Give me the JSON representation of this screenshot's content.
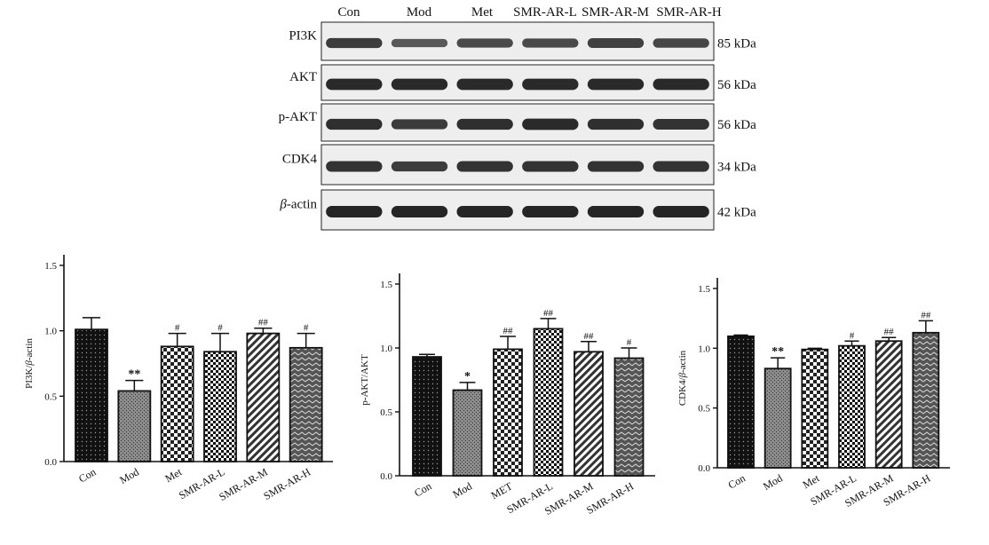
{
  "western_blot": {
    "lanes": [
      "Con",
      "Mod",
      "Met",
      "SMR-AR-L",
      "SMR-AR-M",
      "SMR-AR-H"
    ],
    "rows": [
      {
        "label": "PI3K",
        "kda": "85 kDa",
        "intensity": [
          0.75,
          0.45,
          0.6,
          0.6,
          0.7,
          0.65
        ]
      },
      {
        "label": "AKT",
        "kda": "56 kDa",
        "intensity": [
          0.95,
          0.95,
          0.95,
          0.95,
          0.95,
          0.95
        ]
      },
      {
        "label": "p-AKT",
        "kda": "56 kDa",
        "intensity": [
          0.9,
          0.75,
          0.9,
          0.95,
          0.9,
          0.85
        ]
      },
      {
        "label": "CDK4",
        "kda": "34 kDa",
        "intensity": [
          0.85,
          0.75,
          0.85,
          0.85,
          0.85,
          0.85
        ]
      },
      {
        "label": "β-actin",
        "kda": "42 kDa",
        "intensity": [
          1,
          1,
          1,
          1,
          1,
          1
        ]
      }
    ]
  },
  "chart_data": [
    {
      "type": "bar",
      "categories": [
        "Con",
        "Mod",
        "Met",
        "SMR-AR-L",
        "SMR-AR-M",
        "SMR-AR-H"
      ],
      "values": [
        1.01,
        0.54,
        0.88,
        0.84,
        0.98,
        0.87
      ],
      "errors": [
        0.09,
        0.08,
        0.1,
        0.14,
        0.04,
        0.11
      ],
      "annotations": [
        "",
        "**",
        "#",
        "#",
        "##",
        "#"
      ],
      "ylabel": "PI3K/β-actin",
      "ylim": [
        0,
        1.5
      ],
      "yticks": [
        "0.0",
        "0.5",
        "1.0",
        "1.5"
      ],
      "patterns": [
        "dots",
        "gray",
        "check",
        "smallcheck",
        "diag",
        "zigzag"
      ]
    },
    {
      "type": "bar",
      "categories": [
        "Con",
        "Mod",
        "MET",
        "SMR-AR-L",
        "SMR-AR-M",
        "SMR-AR-H"
      ],
      "values": [
        0.93,
        0.67,
        0.99,
        1.15,
        0.97,
        0.92
      ],
      "errors": [
        0.02,
        0.06,
        0.1,
        0.08,
        0.08,
        0.08
      ],
      "annotations": [
        "",
        "*",
        "##",
        "##",
        "##",
        "#"
      ],
      "ylabel": "p-AKT/AKT",
      "ylim": [
        0,
        1.5
      ],
      "yticks": [
        "0.0",
        "0.5",
        "1.0",
        "1.5"
      ],
      "patterns": [
        "dots",
        "gray",
        "check",
        "smallcheck",
        "diag",
        "zigzag"
      ]
    },
    {
      "type": "bar",
      "categories": [
        "Con",
        "Mod",
        "Met",
        "SMR-AR-L",
        "SMR-AR-M",
        "SMR-AR-H"
      ],
      "values": [
        1.1,
        0.83,
        0.99,
        1.02,
        1.06,
        1.13
      ],
      "errors": [
        0.01,
        0.09,
        0.01,
        0.04,
        0.03,
        0.1
      ],
      "annotations": [
        "",
        "**",
        "",
        "#",
        "##",
        "##"
      ],
      "ylabel": "CDK4/β-actin",
      "ylim": [
        0,
        1.5
      ],
      "yticks": [
        "0.0",
        "0.5",
        "1.0",
        "1.5"
      ],
      "patterns": [
        "dots",
        "gray",
        "check",
        "smallcheck",
        "diag",
        "zigzag"
      ]
    }
  ]
}
